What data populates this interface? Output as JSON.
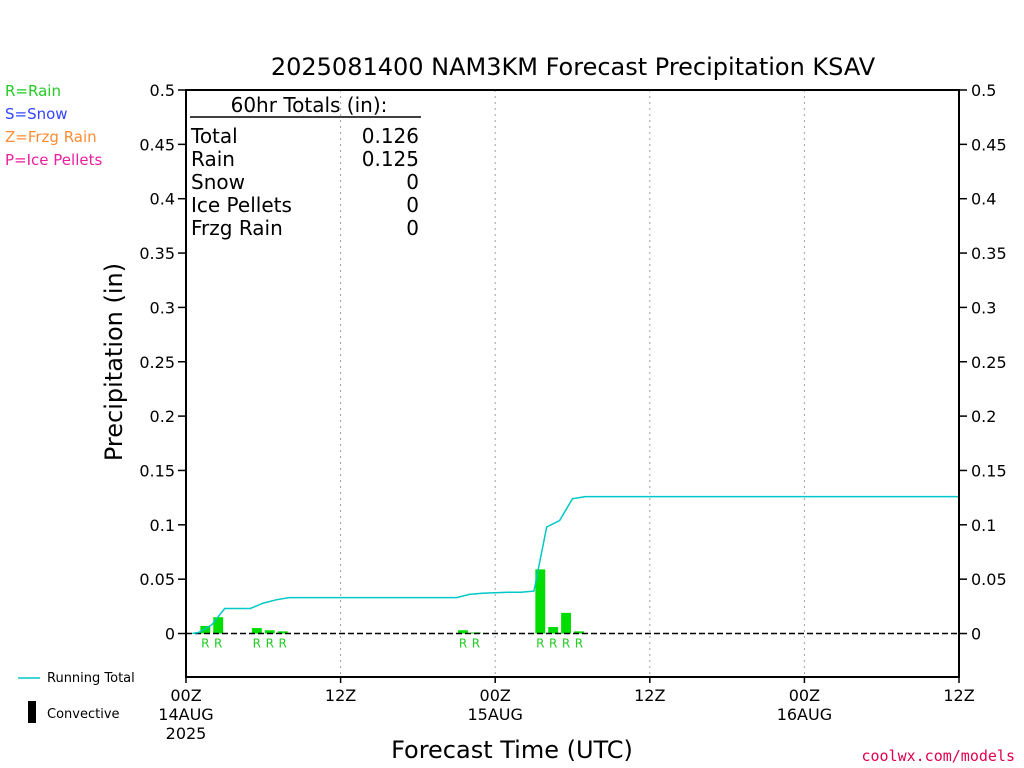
{
  "chart_data": {
    "type": "bar",
    "title": "2025081400 NAM3KM Forecast Precipitation KSAV",
    "xlabel": "Forecast Time (UTC)",
    "ylabel": "Precipitation (in)",
    "ylim": [
      -0.04,
      0.5
    ],
    "xlim_hours": [
      0,
      60
    ],
    "y_ticks": [
      "0",
      "0.05",
      "0.1",
      "0.15",
      "0.2",
      "0.25",
      "0.3",
      "0.35",
      "0.4",
      "0.45",
      "0.5"
    ],
    "y_tick_values": [
      0,
      0.05,
      0.1,
      0.15,
      0.2,
      0.25,
      0.3,
      0.35,
      0.4,
      0.45,
      0.5
    ],
    "x_ticks": [
      {
        "hour": 0,
        "label": "00Z",
        "sub1": "14AUG",
        "sub2": "2025"
      },
      {
        "hour": 12,
        "label": "12Z",
        "sub1": "",
        "sub2": ""
      },
      {
        "hour": 24,
        "label": "00Z",
        "sub1": "15AUG",
        "sub2": ""
      },
      {
        "hour": 36,
        "label": "12Z",
        "sub1": "",
        "sub2": ""
      },
      {
        "hour": 48,
        "label": "00Z",
        "sub1": "16AUG",
        "sub2": ""
      },
      {
        "hour": 60,
        "label": "12Z",
        "sub1": "",
        "sub2": ""
      }
    ],
    "grid_hours": [
      12,
      24,
      36,
      48
    ],
    "bars": [
      {
        "hour": 2,
        "value": 0.007,
        "ptype": "R"
      },
      {
        "hour": 3,
        "value": 0.015,
        "ptype": "R"
      },
      {
        "hour": 6,
        "value": 0.005,
        "ptype": "R"
      },
      {
        "hour": 7,
        "value": 0.003,
        "ptype": "R"
      },
      {
        "hour": 8,
        "value": 0.002,
        "ptype": "R"
      },
      {
        "hour": 22,
        "value": 0.003,
        "ptype": "R"
      },
      {
        "hour": 23,
        "value": 0.001,
        "ptype": "R"
      },
      {
        "hour": 28,
        "value": 0.059,
        "ptype": "R"
      },
      {
        "hour": 29,
        "value": 0.006,
        "ptype": "R"
      },
      {
        "hour": 30,
        "value": 0.019,
        "ptype": "R"
      },
      {
        "hour": 31,
        "value": 0.002,
        "ptype": "R"
      }
    ],
    "running_total": {
      "name": "Running Total",
      "points": [
        [
          0.5,
          0
        ],
        [
          1,
          0.001
        ],
        [
          2,
          0.008
        ],
        [
          3,
          0.023
        ],
        [
          5,
          0.023
        ],
        [
          6,
          0.028
        ],
        [
          7,
          0.031
        ],
        [
          8,
          0.033
        ],
        [
          21,
          0.033
        ],
        [
          22,
          0.036
        ],
        [
          23,
          0.037
        ],
        [
          25,
          0.038
        ],
        [
          26,
          0.038
        ],
        [
          27,
          0.039
        ],
        [
          28,
          0.098
        ],
        [
          29,
          0.104
        ],
        [
          30,
          0.124
        ],
        [
          31,
          0.126
        ],
        [
          60,
          0.126
        ]
      ]
    },
    "totals_box": {
      "header": "60hr Totals (in):",
      "rows": [
        {
          "label": "Total",
          "value": "0.126"
        },
        {
          "label": "Rain",
          "value": "0.125"
        },
        {
          "label": "Snow",
          "value": "0"
        },
        {
          "label": "Ice Pellets",
          "value": "0"
        },
        {
          "label": "Frzg Rain",
          "value": "0"
        }
      ]
    },
    "ptype_legend": [
      {
        "text": "R=Rain",
        "color": "#22cc22"
      },
      {
        "text": "S=Snow",
        "color": "#3344ff"
      },
      {
        "text": "Z=Frzg Rain",
        "color": "#ff8c33"
      },
      {
        "text": "P=Ice Pellets",
        "color": "#ee1e9c"
      }
    ],
    "bottom_legend": {
      "running_total": "Running Total",
      "convective": "Convective"
    },
    "credit": "coolwx.com/models",
    "colors": {
      "bar": "#00dd00",
      "line": "#00c8c8",
      "ptype_label": "#22cc22",
      "grid": "#a0a0a0"
    }
  }
}
